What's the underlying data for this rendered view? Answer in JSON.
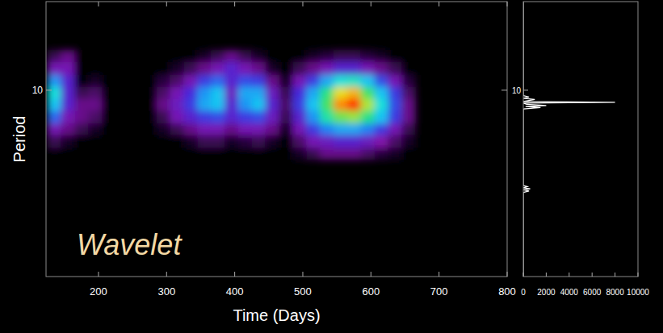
{
  "chart_data": [
    {
      "type": "heatmap",
      "annotation": "Wavelet",
      "x_label": "Time (Days)",
      "y_label": "Period",
      "log": "y",
      "xlim": [
        123,
        800
      ],
      "xticks": [
        200,
        300,
        400,
        500,
        600,
        700,
        800
      ],
      "ylim": [
        2.1,
        21
      ],
      "yticks": [
        10
      ],
      "clim": [
        0,
        1
      ],
      "x": [
        125,
        145,
        165,
        185,
        205,
        225,
        245,
        265,
        285,
        305,
        325,
        345,
        365,
        385,
        405,
        425,
        445,
        465,
        485,
        505,
        525,
        545,
        565,
        585,
        605,
        625,
        645,
        665
      ],
      "y": [
        5.6,
        6.2,
        6.9,
        7.6,
        8.45,
        9.35,
        10.3,
        11.4,
        12.7,
        14
      ],
      "cells": [
        [
          0,
          0.1,
          0.2,
          0.35,
          0.45,
          0.5,
          0.4,
          0.2,
          0.1
        ],
        [
          0,
          0.05,
          0.15,
          0.2,
          0.25,
          0.25,
          0.25,
          0.2,
          0.15
        ],
        [
          0,
          0,
          0.1,
          0.15,
          0.15,
          0.1,
          0,
          0,
          0
        ],
        [
          0,
          0,
          0.05,
          0.12,
          0.15,
          0.12,
          0.05,
          0,
          0
        ],
        [
          0,
          0,
          0,
          0,
          0,
          0,
          0,
          0,
          0
        ],
        [
          0,
          0,
          0,
          0,
          0,
          0,
          0,
          0,
          0
        ],
        [
          0,
          0,
          0,
          0,
          0,
          0,
          0,
          0,
          0
        ],
        [
          0,
          0,
          0,
          0,
          0,
          0,
          0,
          0,
          0
        ],
        [
          0,
          0,
          0.05,
          0.1,
          0.15,
          0.12,
          0.08,
          0,
          0
        ],
        [
          0,
          0,
          0.1,
          0.2,
          0.22,
          0.2,
          0.12,
          0.05,
          0
        ],
        [
          0,
          0.05,
          0.15,
          0.25,
          0.3,
          0.28,
          0.2,
          0.1,
          0
        ],
        [
          0,
          0.1,
          0.2,
          0.3,
          0.42,
          0.4,
          0.3,
          0.15,
          0.05
        ],
        [
          0,
          0.1,
          0.2,
          0.32,
          0.45,
          0.45,
          0.35,
          0.2,
          0.1
        ],
        [
          0,
          0.05,
          0.15,
          0.25,
          0.25,
          0.22,
          0.25,
          0.25,
          0.15
        ],
        [
          0,
          0.08,
          0.2,
          0.3,
          0.4,
          0.42,
          0.32,
          0.2,
          0.1
        ],
        [
          0,
          0.1,
          0.2,
          0.32,
          0.45,
          0.42,
          0.3,
          0.15,
          0.05
        ],
        [
          0,
          0.05,
          0.15,
          0.22,
          0.25,
          0.22,
          0.15,
          0.05,
          0
        ],
        [
          0,
          0,
          0.05,
          0.1,
          0.12,
          0.1,
          0.05,
          0,
          0
        ],
        [
          0.05,
          0.12,
          0.2,
          0.25,
          0.3,
          0.28,
          0.2,
          0.1,
          0
        ],
        [
          0.1,
          0.2,
          0.3,
          0.4,
          0.45,
          0.42,
          0.3,
          0.15,
          0.05
        ],
        [
          0.15,
          0.22,
          0.38,
          0.55,
          0.62,
          0.58,
          0.42,
          0.2,
          0.08
        ],
        [
          0.15,
          0.25,
          0.42,
          0.65,
          0.85,
          0.75,
          0.5,
          0.25,
          0.1
        ],
        [
          0.15,
          0.25,
          0.42,
          0.68,
          0.95,
          0.8,
          0.52,
          0.25,
          0.1
        ],
        [
          0.12,
          0.22,
          0.38,
          0.58,
          0.7,
          0.62,
          0.45,
          0.2,
          0.08
        ],
        [
          0.08,
          0.18,
          0.3,
          0.45,
          0.5,
          0.45,
          0.32,
          0.15,
          0.05
        ],
        [
          0.05,
          0.12,
          0.2,
          0.3,
          0.32,
          0.3,
          0.2,
          0.1,
          0
        ],
        [
          0,
          0.05,
          0.1,
          0.15,
          0.15,
          0.12,
          0.08,
          0,
          0
        ]
      ]
    },
    {
      "type": "line",
      "orientation": "horizontal",
      "log": "y",
      "xlim": [
        0,
        10000
      ],
      "xticks": [
        0,
        2000,
        4000,
        6000,
        8000,
        10000
      ],
      "ylim": [
        2.1,
        21
      ],
      "yticks": [
        10
      ],
      "y": [
        2.1,
        4.25,
        4.3,
        4.34,
        4.38,
        4.42,
        4.46,
        4.5,
        8.55,
        8.65,
        8.72,
        8.8,
        8.88,
        8.97,
        9.04,
        9.1,
        9.25,
        9.35,
        9.45,
        9.55,
        21
      ],
      "series": [
        {
          "color": "#ffffff",
          "values": [
            0,
            0,
            500,
            0,
            600,
            0,
            350,
            0,
            0,
            1500,
            200,
            2000,
            300,
            0,
            8000,
            0,
            1000,
            0,
            500,
            0,
            0
          ]
        }
      ]
    }
  ]
}
